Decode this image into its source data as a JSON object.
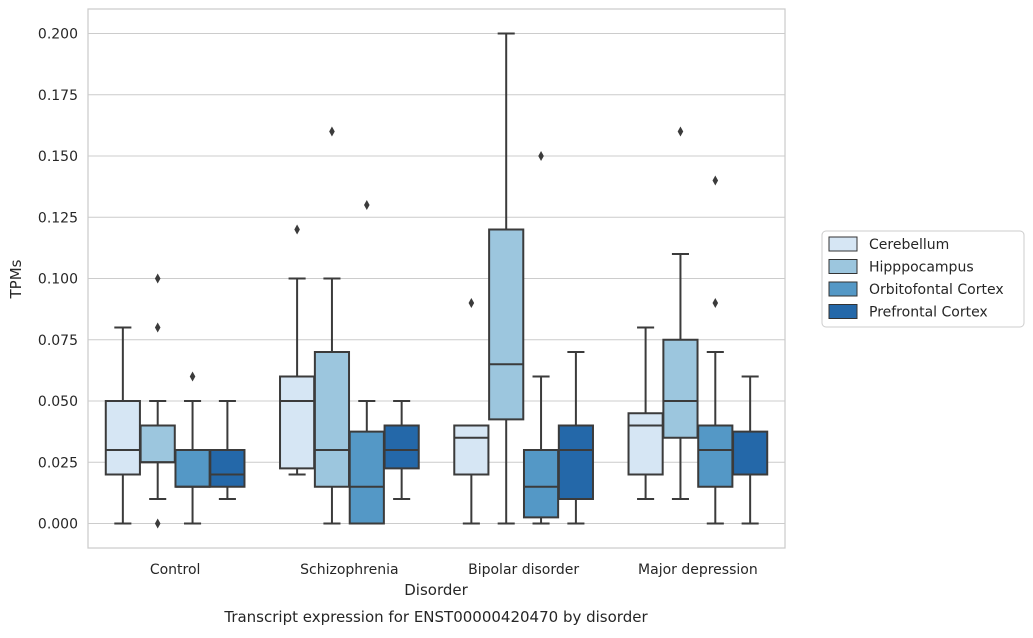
{
  "chart_data": {
    "type": "box",
    "caption": "Transcript expression for ENST00000420470 by disorder",
    "xlabel": "Disorder",
    "ylabel": "TPMs",
    "ylim": [
      -0.01,
      0.21
    ],
    "yticks": [
      0.0,
      0.025,
      0.05,
      0.075,
      0.1,
      0.125,
      0.15,
      0.175,
      0.2
    ],
    "ytick_labels": [
      "0.000",
      "0.025",
      "0.050",
      "0.075",
      "0.100",
      "0.125",
      "0.150",
      "0.175",
      "0.200"
    ],
    "grid": "horizontal",
    "legend_position": "right",
    "categories": [
      "Control",
      "Schizophrenia",
      "Bipolar disorder",
      "Major depression"
    ],
    "series": [
      {
        "name": "Cerebellum",
        "color": "#d6e6f4",
        "boxes": [
          {
            "whisker_low": 0.0,
            "q1": 0.02,
            "median": 0.03,
            "q3": 0.05,
            "whisker_high": 0.08,
            "outliers": []
          },
          {
            "whisker_low": 0.02,
            "q1": 0.0225,
            "median": 0.05,
            "q3": 0.06,
            "whisker_high": 0.1,
            "outliers": [
              0.12
            ]
          },
          {
            "whisker_low": 0.0,
            "q1": 0.02,
            "median": 0.035,
            "q3": 0.04,
            "whisker_high": 0.04,
            "outliers": [
              0.09
            ]
          },
          {
            "whisker_low": 0.01,
            "q1": 0.02,
            "median": 0.04,
            "q3": 0.045,
            "whisker_high": 0.08,
            "outliers": []
          }
        ]
      },
      {
        "name": "Hipppocampus",
        "color": "#9cc6de",
        "boxes": [
          {
            "whisker_low": 0.01,
            "q1": 0.025,
            "median": 0.025,
            "q3": 0.04,
            "whisker_high": 0.05,
            "outliers": [
              0.1,
              0.08,
              0.0
            ]
          },
          {
            "whisker_low": 0.0,
            "q1": 0.015,
            "median": 0.03,
            "q3": 0.07,
            "whisker_high": 0.1,
            "outliers": [
              0.16
            ]
          },
          {
            "whisker_low": 0.0,
            "q1": 0.0425,
            "median": 0.065,
            "q3": 0.12,
            "whisker_high": 0.2,
            "outliers": []
          },
          {
            "whisker_low": 0.01,
            "q1": 0.035,
            "median": 0.05,
            "q3": 0.075,
            "whisker_high": 0.11,
            "outliers": [
              0.16
            ]
          }
        ]
      },
      {
        "name": "Orbitofontal Cortex",
        "color": "#5498c6",
        "boxes": [
          {
            "whisker_low": 0.0,
            "q1": 0.015,
            "median": 0.015,
            "q3": 0.03,
            "whisker_high": 0.05,
            "outliers": [
              0.06
            ]
          },
          {
            "whisker_low": 0.0,
            "q1": 0.0,
            "median": 0.015,
            "q3": 0.0375,
            "whisker_high": 0.05,
            "outliers": [
              0.13
            ]
          },
          {
            "whisker_low": 0.0,
            "q1": 0.0025,
            "median": 0.015,
            "q3": 0.03,
            "whisker_high": 0.06,
            "outliers": [
              0.15
            ]
          },
          {
            "whisker_low": 0.0,
            "q1": 0.015,
            "median": 0.03,
            "q3": 0.04,
            "whisker_high": 0.07,
            "outliers": [
              0.14,
              0.09
            ]
          }
        ]
      },
      {
        "name": "Prefrontal Cortex",
        "color": "#2468a9",
        "boxes": [
          {
            "whisker_low": 0.01,
            "q1": 0.015,
            "median": 0.02,
            "q3": 0.03,
            "whisker_high": 0.05,
            "outliers": []
          },
          {
            "whisker_low": 0.01,
            "q1": 0.0225,
            "median": 0.03,
            "q3": 0.04,
            "whisker_high": 0.05,
            "outliers": []
          },
          {
            "whisker_low": 0.0,
            "q1": 0.01,
            "median": 0.03,
            "q3": 0.04,
            "whisker_high": 0.07,
            "outliers": []
          },
          {
            "whisker_low": 0.0,
            "q1": 0.02,
            "median": 0.02,
            "q3": 0.0375,
            "whisker_high": 0.06,
            "outliers": []
          }
        ]
      }
    ]
  }
}
